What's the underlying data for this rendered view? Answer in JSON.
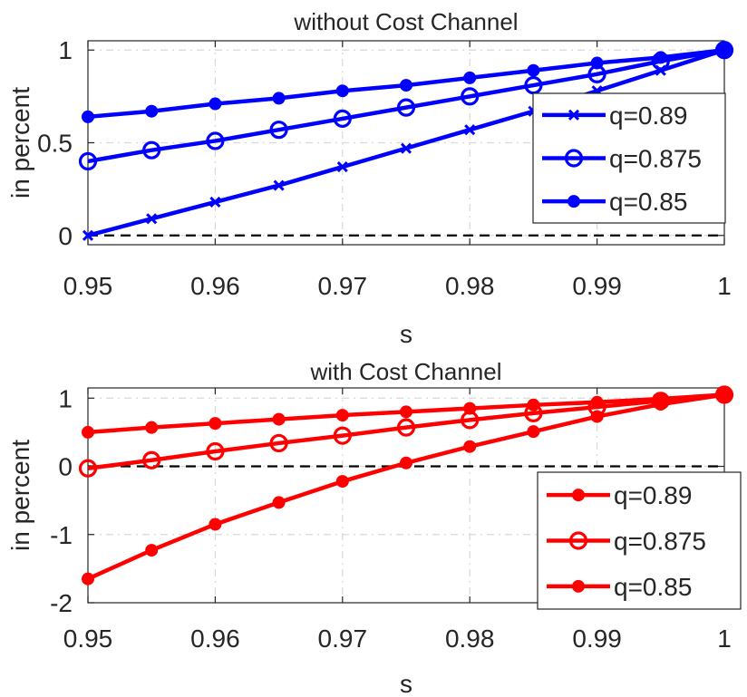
{
  "chart_data": [
    {
      "type": "line",
      "title": "without Cost Channel",
      "xlabel": "s",
      "ylabel": "in percent",
      "xlim": [
        0.95,
        1
      ],
      "ylim": [
        -0.05,
        1.05
      ],
      "xticks": [
        0.95,
        0.96,
        0.97,
        0.98,
        0.99,
        1
      ],
      "xtick_labels": [
        "0.95",
        "0.96",
        "0.97",
        "0.98",
        "0.99",
        "1"
      ],
      "yticks": [
        0,
        0.5,
        1
      ],
      "ytick_labels": [
        "0",
        "0.5",
        "1"
      ],
      "grid": true,
      "reference_line": 0,
      "legend_position": "right",
      "color": "#0000ff",
      "x": [
        0.95,
        0.955,
        0.96,
        0.965,
        0.97,
        0.975,
        0.98,
        0.985,
        0.99,
        0.995,
        1
      ],
      "series": [
        {
          "name": "q=0.89",
          "marker": "x",
          "values": [
            0.0,
            0.09,
            0.18,
            0.27,
            0.37,
            0.47,
            0.57,
            0.67,
            0.78,
            0.89,
            1.0
          ]
        },
        {
          "name": "q=0.875",
          "marker": "o",
          "values": [
            0.4,
            0.46,
            0.51,
            0.57,
            0.63,
            0.69,
            0.75,
            0.81,
            0.87,
            0.94,
            1.0
          ]
        },
        {
          "name": "q=0.85",
          "marker": "dot",
          "values": [
            0.64,
            0.67,
            0.71,
            0.74,
            0.78,
            0.81,
            0.85,
            0.89,
            0.93,
            0.96,
            1.0
          ]
        }
      ]
    },
    {
      "type": "line",
      "title": "with Cost Channel",
      "xlabel": "s",
      "ylabel": "in percent",
      "xlim": [
        0.95,
        1
      ],
      "ylim": [
        -2,
        1.15
      ],
      "xticks": [
        0.95,
        0.96,
        0.97,
        0.98,
        0.99,
        1
      ],
      "xtick_labels": [
        "0.95",
        "0.96",
        "0.97",
        "0.98",
        "0.99",
        "1"
      ],
      "yticks": [
        -2,
        -1,
        0,
        1
      ],
      "ytick_labels": [
        "-2",
        "-1",
        "0",
        "1"
      ],
      "grid": true,
      "reference_line": 0,
      "legend_position": "bottom-right",
      "color": "#ff0000",
      "x": [
        0.95,
        0.955,
        0.96,
        0.965,
        0.97,
        0.975,
        0.98,
        0.985,
        0.99,
        0.995,
        1
      ],
      "series": [
        {
          "name": "q=0.89",
          "marker": "dot",
          "values": [
            -1.65,
            -1.23,
            -0.85,
            -0.53,
            -0.22,
            0.05,
            0.29,
            0.51,
            0.73,
            0.91,
            1.05
          ]
        },
        {
          "name": "q=0.875",
          "marker": "o",
          "values": [
            -0.03,
            0.09,
            0.22,
            0.34,
            0.45,
            0.57,
            0.68,
            0.78,
            0.87,
            0.96,
            1.05
          ]
        },
        {
          "name": "q=0.85",
          "marker": "dot",
          "values": [
            0.5,
            0.57,
            0.63,
            0.69,
            0.75,
            0.8,
            0.85,
            0.9,
            0.94,
            0.99,
            1.05
          ]
        }
      ]
    }
  ]
}
